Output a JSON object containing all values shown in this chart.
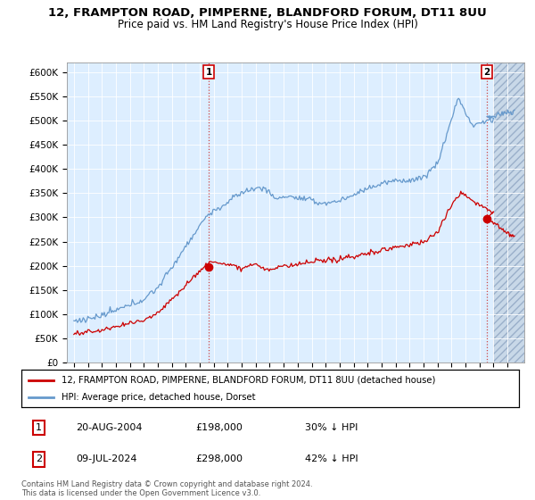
{
  "title": "12, FRAMPTON ROAD, PIMPERNE, BLANDFORD FORUM, DT11 8UU",
  "subtitle": "Price paid vs. HM Land Registry's House Price Index (HPI)",
  "legend_label_red": "12, FRAMPTON ROAD, PIMPERNE, BLANDFORD FORUM, DT11 8UU (detached house)",
  "legend_label_blue": "HPI: Average price, detached house, Dorset",
  "annotation1_date": "20-AUG-2004",
  "annotation1_price": "£198,000",
  "annotation1_hpi": "30% ↓ HPI",
  "annotation2_date": "09-JUL-2024",
  "annotation2_price": "£298,000",
  "annotation2_hpi": "42% ↓ HPI",
  "footer": "Contains HM Land Registry data © Crown copyright and database right 2024.\nThis data is licensed under the Open Government Licence v3.0.",
  "red_color": "#cc0000",
  "blue_color": "#6699cc",
  "background_color": "#ddeeff",
  "ylim": [
    0,
    620000
  ],
  "yticks": [
    0,
    50000,
    100000,
    150000,
    200000,
    250000,
    300000,
    350000,
    400000,
    450000,
    500000,
    550000,
    600000
  ],
  "ytick_labels": [
    "£0",
    "£50K",
    "£100K",
    "£150K",
    "£200K",
    "£250K",
    "£300K",
    "£350K",
    "£400K",
    "£450K",
    "£500K",
    "£550K",
    "£600K"
  ],
  "marker1_x": 2004.64,
  "marker1_y": 198000,
  "marker2_x": 2024.52,
  "marker2_y": 298000,
  "xlim_left": 1994.5,
  "xlim_right": 2027.2,
  "hatch_start": 2025.0
}
